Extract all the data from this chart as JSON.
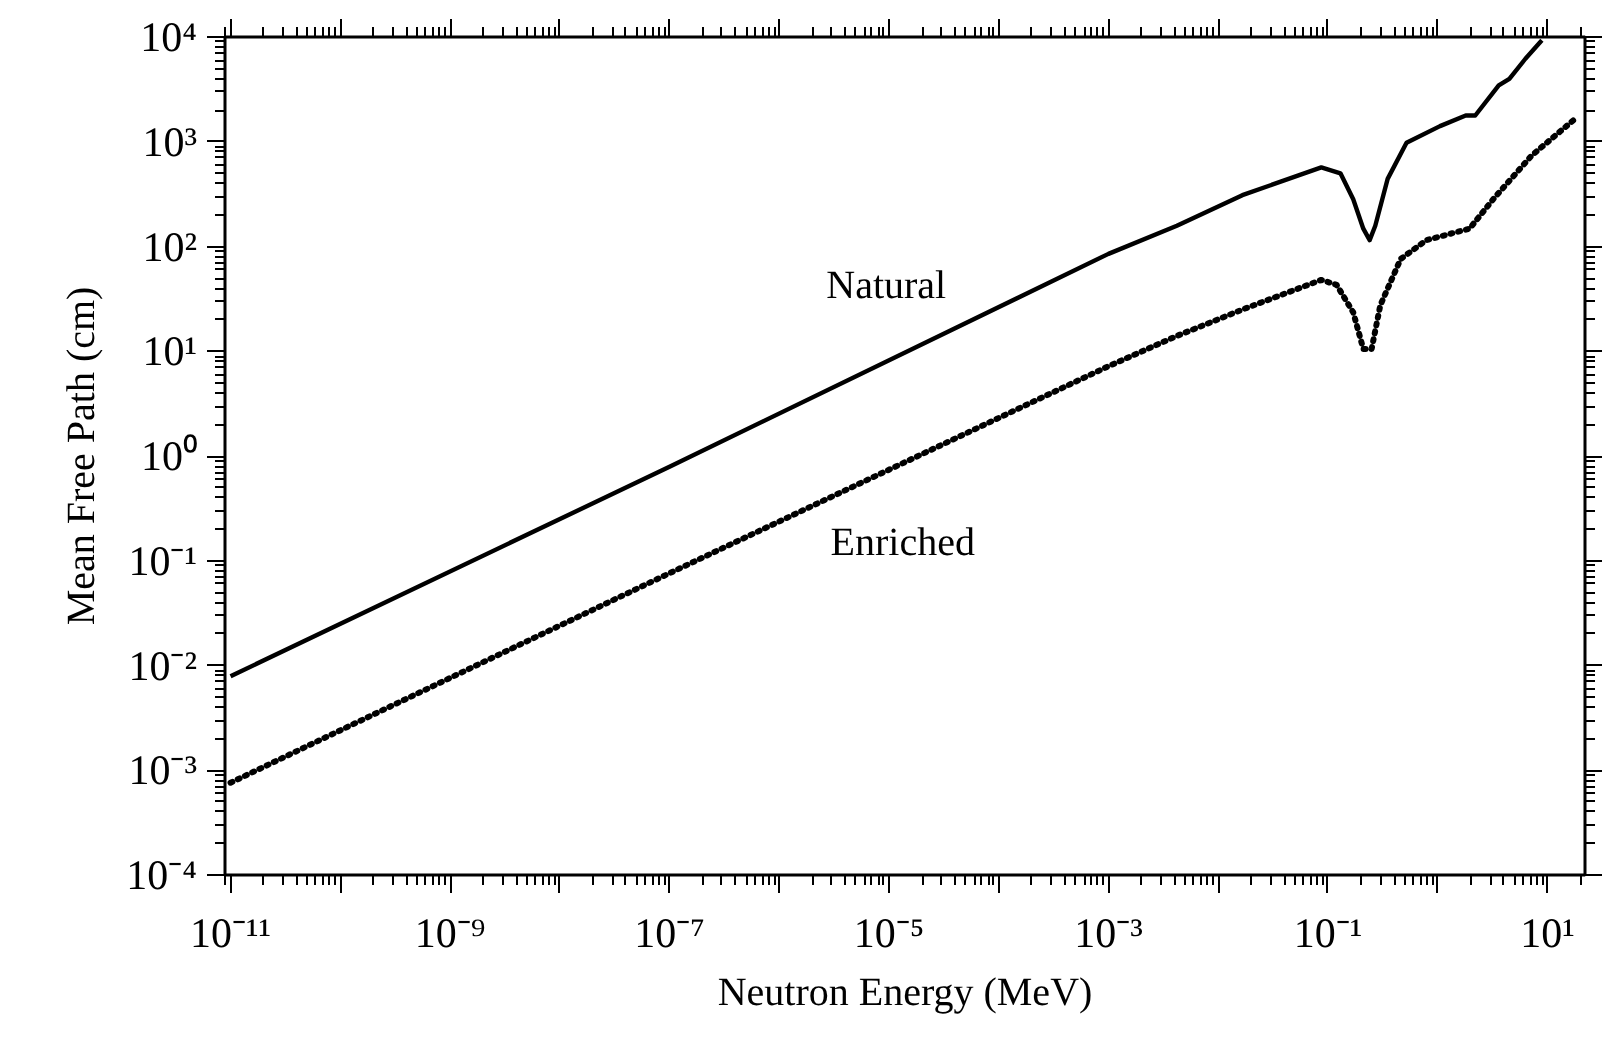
{
  "chart_data": {
    "type": "line",
    "xlabel": "Neutron Energy (MeV)",
    "ylabel": "Mean Free Path (cm)",
    "log": "xy",
    "grid": false,
    "xlim": [
      8.9e-12,
      22
    ],
    "ylim": [
      0.0001,
      10000
    ],
    "xticks": [
      {
        "value": 1e-11,
        "label": "10⁻¹¹"
      },
      {
        "value": 1e-10,
        "label": null
      },
      {
        "value": 1e-09,
        "label": "10⁻⁹"
      },
      {
        "value": 1e-08,
        "label": null
      },
      {
        "value": 1e-07,
        "label": "10⁻⁷"
      },
      {
        "value": 1e-06,
        "label": null
      },
      {
        "value": 1e-05,
        "label": "10⁻⁵"
      },
      {
        "value": 0.0001,
        "label": null
      },
      {
        "value": 0.001,
        "label": "10⁻³"
      },
      {
        "value": 0.01,
        "label": null
      },
      {
        "value": 0.1,
        "label": "10⁻¹"
      },
      {
        "value": 1,
        "label": null
      },
      {
        "value": 10,
        "label": "10¹"
      }
    ],
    "yticks": [
      {
        "value": 0.0001,
        "label": "10⁻⁴"
      },
      {
        "value": 0.001,
        "label": "10⁻³"
      },
      {
        "value": 0.01,
        "label": "10⁻²"
      },
      {
        "value": 0.1,
        "label": "10⁻¹"
      },
      {
        "value": 1,
        "label": "10⁰"
      },
      {
        "value": 10,
        "label": "10¹"
      },
      {
        "value": 100,
        "label": "10²"
      },
      {
        "value": 1000,
        "label": "10³"
      },
      {
        "value": 10000,
        "label": "10⁴"
      }
    ],
    "series": [
      {
        "name": "Natural",
        "color": "#000000",
        "line_style": "solid",
        "x": [
          1e-11,
          1e-07,
          0.001,
          0.0042,
          0.0166,
          0.087,
          0.13,
          0.17,
          0.21,
          0.24,
          0.27,
          0.35,
          0.52,
          1.05,
          1.8,
          2.2,
          3.6,
          4.5,
          6.3,
          8.9
        ],
        "values": [
          0.0079,
          0.79,
          85,
          158,
          309,
          569,
          500,
          282,
          148,
          115,
          158,
          442,
          977,
          1410,
          1780,
          1780,
          3450,
          3980,
          6200,
          9300
        ]
      },
      {
        "name": "Enriched",
        "color": "#000000",
        "line_style": "dotted",
        "x": [
          1e-11,
          1e-07,
          0.001,
          0.0042,
          0.0166,
          0.087,
          0.12,
          0.17,
          0.21,
          0.25,
          0.3,
          0.46,
          0.79,
          1.95,
          3.2,
          7.2,
          17.8
        ],
        "values": [
          0.00076,
          0.076,
          7.2,
          14,
          25,
          48,
          43,
          23.5,
          10.5,
          10.5,
          27.5,
          76,
          115,
          148,
          282,
          740,
          1650
        ]
      }
    ]
  }
}
